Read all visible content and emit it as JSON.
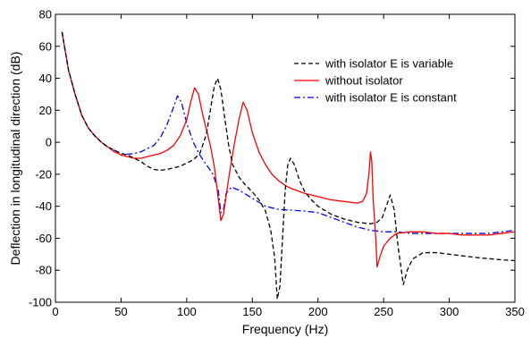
{
  "chart_data": {
    "type": "line",
    "title": "",
    "xlabel": "Frequency (Hz)",
    "ylabel": "Deflection in longitudinal direction (dB)",
    "xlim": [
      0,
      350
    ],
    "ylim": [
      -100,
      80
    ],
    "xticks": [
      0,
      50,
      100,
      150,
      200,
      250,
      300,
      350
    ],
    "yticks": [
      -100,
      -80,
      -60,
      -40,
      -20,
      0,
      20,
      40,
      60,
      80
    ],
    "grid": false,
    "legend_position": "top-right",
    "series": [
      {
        "name": "with isolator E is variable",
        "color": "#000000",
        "dash": "dashed",
        "points": [
          [
            5,
            69
          ],
          [
            10,
            45
          ],
          [
            15,
            30
          ],
          [
            20,
            17
          ],
          [
            25,
            9
          ],
          [
            30,
            4
          ],
          [
            35,
            0
          ],
          [
            40,
            -3
          ],
          [
            45,
            -5
          ],
          [
            50,
            -7
          ],
          [
            55,
            -8
          ],
          [
            60,
            -10
          ],
          [
            65,
            -12
          ],
          [
            70,
            -15
          ],
          [
            75,
            -17
          ],
          [
            80,
            -17.5
          ],
          [
            85,
            -17
          ],
          [
            90,
            -16
          ],
          [
            95,
            -15
          ],
          [
            100,
            -13
          ],
          [
            105,
            -11
          ],
          [
            110,
            -7
          ],
          [
            115,
            5
          ],
          [
            118,
            20
          ],
          [
            121,
            35
          ],
          [
            123.5,
            40
          ],
          [
            126,
            33
          ],
          [
            129,
            15
          ],
          [
            132,
            -2
          ],
          [
            135,
            -14
          ],
          [
            140,
            -22
          ],
          [
            145,
            -27
          ],
          [
            150,
            -31
          ],
          [
            155,
            -36
          ],
          [
            160,
            -43
          ],
          [
            164,
            -55
          ],
          [
            167,
            -72
          ],
          [
            169,
            -98
          ],
          [
            171,
            -90
          ],
          [
            173,
            -60
          ],
          [
            175,
            -30
          ],
          [
            177,
            -14
          ],
          [
            179,
            -10
          ],
          [
            182,
            -14
          ],
          [
            186,
            -24
          ],
          [
            190,
            -31
          ],
          [
            195,
            -36
          ],
          [
            200,
            -40
          ],
          [
            210,
            -45
          ],
          [
            220,
            -48
          ],
          [
            230,
            -50
          ],
          [
            240,
            -51
          ],
          [
            245,
            -50
          ],
          [
            249,
            -47
          ],
          [
            252,
            -40
          ],
          [
            255,
            -33
          ],
          [
            258,
            -42
          ],
          [
            261,
            -65
          ],
          [
            265,
            -89
          ],
          [
            268,
            -80
          ],
          [
            272,
            -73
          ],
          [
            280,
            -69
          ],
          [
            290,
            -69
          ],
          [
            300,
            -70
          ],
          [
            320,
            -72
          ],
          [
            340,
            -73.5
          ],
          [
            350,
            -74
          ]
        ]
      },
      {
        "name": "without isolator",
        "color": "#ff0000",
        "dash": "solid",
        "points": [
          [
            5,
            69
          ],
          [
            10,
            45
          ],
          [
            15,
            30
          ],
          [
            20,
            17
          ],
          [
            25,
            9
          ],
          [
            30,
            4
          ],
          [
            35,
            0
          ],
          [
            40,
            -3
          ],
          [
            45,
            -6
          ],
          [
            50,
            -8
          ],
          [
            55,
            -9
          ],
          [
            60,
            -10
          ],
          [
            65,
            -10
          ],
          [
            70,
            -9
          ],
          [
            75,
            -8
          ],
          [
            80,
            -7
          ],
          [
            85,
            -5
          ],
          [
            90,
            -2
          ],
          [
            95,
            4
          ],
          [
            100,
            14
          ],
          [
            103,
            25
          ],
          [
            106,
            34
          ],
          [
            109,
            30
          ],
          [
            112,
            18
          ],
          [
            115,
            8
          ],
          [
            118,
            -2
          ],
          [
            121,
            -15
          ],
          [
            124,
            -35
          ],
          [
            126,
            -49
          ],
          [
            128,
            -45
          ],
          [
            131,
            -28
          ],
          [
            134,
            -12
          ],
          [
            137,
            2
          ],
          [
            140,
            15
          ],
          [
            143,
            25
          ],
          [
            146,
            20
          ],
          [
            150,
            6
          ],
          [
            155,
            -6
          ],
          [
            160,
            -14
          ],
          [
            165,
            -20
          ],
          [
            170,
            -24
          ],
          [
            175,
            -27
          ],
          [
            180,
            -29
          ],
          [
            190,
            -32
          ],
          [
            200,
            -34
          ],
          [
            210,
            -36
          ],
          [
            220,
            -37
          ],
          [
            230,
            -38
          ],
          [
            234,
            -37
          ],
          [
            237,
            -32
          ],
          [
            239,
            -18
          ],
          [
            240,
            -6
          ],
          [
            241,
            -12
          ],
          [
            242,
            -35
          ],
          [
            244,
            -60
          ],
          [
            245,
            -78
          ],
          [
            247,
            -72
          ],
          [
            250,
            -65
          ],
          [
            255,
            -60
          ],
          [
            260,
            -57
          ],
          [
            270,
            -56
          ],
          [
            280,
            -56
          ],
          [
            290,
            -57
          ],
          [
            300,
            -57
          ],
          [
            310,
            -58
          ],
          [
            320,
            -58
          ],
          [
            330,
            -58
          ],
          [
            340,
            -57
          ],
          [
            350,
            -56
          ]
        ]
      },
      {
        "name": "with isolator E is constant",
        "color": "#0000ff",
        "dash": "dashdot",
        "points": [
          [
            5,
            69
          ],
          [
            10,
            45
          ],
          [
            15,
            30
          ],
          [
            20,
            17
          ],
          [
            25,
            9
          ],
          [
            30,
            4
          ],
          [
            35,
            0
          ],
          [
            40,
            -3
          ],
          [
            45,
            -5
          ],
          [
            50,
            -7
          ],
          [
            55,
            -7.5
          ],
          [
            60,
            -7
          ],
          [
            65,
            -6
          ],
          [
            70,
            -4
          ],
          [
            75,
            -2
          ],
          [
            80,
            3
          ],
          [
            85,
            11
          ],
          [
            90,
            22
          ],
          [
            93,
            29
          ],
          [
            96,
            25
          ],
          [
            100,
            12
          ],
          [
            105,
            0
          ],
          [
            110,
            -8
          ],
          [
            115,
            -14
          ],
          [
            120,
            -20
          ],
          [
            124,
            -30
          ],
          [
            126,
            -44
          ],
          [
            128,
            -42
          ],
          [
            130,
            -32
          ],
          [
            134,
            -28
          ],
          [
            140,
            -30
          ],
          [
            150,
            -35
          ],
          [
            160,
            -40
          ],
          [
            170,
            -42
          ],
          [
            180,
            -42.5
          ],
          [
            190,
            -43
          ],
          [
            200,
            -44
          ],
          [
            210,
            -47
          ],
          [
            220,
            -50
          ],
          [
            230,
            -53
          ],
          [
            240,
            -55
          ],
          [
            250,
            -56
          ],
          [
            260,
            -56
          ],
          [
            270,
            -57
          ],
          [
            280,
            -57
          ],
          [
            290,
            -57
          ],
          [
            300,
            -57
          ],
          [
            310,
            -57
          ],
          [
            320,
            -57
          ],
          [
            330,
            -57
          ],
          [
            340,
            -56
          ],
          [
            350,
            -55
          ]
        ]
      }
    ]
  }
}
